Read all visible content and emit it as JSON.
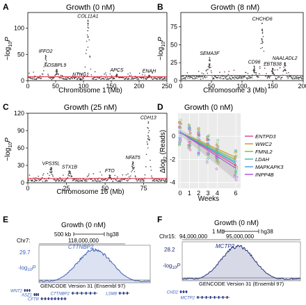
{
  "panels": {
    "A": {
      "letter": "A",
      "title": "Growth (0 nM)",
      "xlabel": "Chromosome 1 (Mb)",
      "ylabel_main": "−log",
      "ylabel_sub": "10",
      "ylabel_p": "P"
    },
    "B": {
      "letter": "B",
      "title": "Growth (8 nM)",
      "xlabel": "Chromosome 3 (Mb)",
      "ylabel_main": "−log",
      "ylabel_sub": "10",
      "ylabel_p": "P"
    },
    "C": {
      "letter": "C",
      "title": "Growth (25 nM)",
      "xlabel": "Chromosome 16 (Mb)",
      "ylabel_main": "−log",
      "ylabel_sub": "10",
      "ylabel_p": "P"
    },
    "D": {
      "letter": "D",
      "title": "Growth (0 nM)",
      "xlabel": "Weeks",
      "ylabel_main": "Δlog",
      "ylabel_sub": "2",
      "ylabel_tail": " (Reads)"
    },
    "E": {
      "letter": "E",
      "title": "Growth (0 nM)",
      "chrom": "Chr7:",
      "scale": "500 kb",
      "build": "hg38",
      "position": "118,000,000",
      "gene": "CTTNBP2",
      "ymax": "29.7",
      "ylabel_main": "-log",
      "ylabel_sub": "10",
      "ylabel_p": "P",
      "annotation": "GENCODE Version 31 (Ensembl 97)",
      "genes_track": [
        "WNT2",
        "ASZ1",
        "CFTR",
        "CTTNBP2",
        "LSM8"
      ]
    },
    "F": {
      "letter": "F",
      "title": "Growth (0 nM)",
      "chrom": "Chr15:",
      "scale": "1 Mb",
      "build": "hg38",
      "position1": "94,000,000",
      "position2": "95,000,000",
      "gene": "MCTP2",
      "ymax": "28.2",
      "ylabel_main": "-log",
      "ylabel_sub": "10",
      "ylabel_p": "P",
      "annotation": "GENCODE Version 31 (Ensembl 97)",
      "genes_track": [
        "CHD2",
        "MCTP2"
      ]
    }
  },
  "colors": {
    "threshold": "#e8253a",
    "manhattan": "#444444",
    "track_blue": "#3c5fb8",
    "track_dark": "#1f2f7a",
    "gene_label": "#3c5fb8"
  },
  "chart_data": [
    {
      "type": "scatter",
      "panel": "A",
      "xlim": [
        0,
        250
      ],
      "ylim": [
        0,
        130
      ],
      "xticks": [
        0,
        50,
        100,
        150,
        200,
        250
      ],
      "yticks": [
        0,
        50,
        100
      ],
      "threshold": 7.3,
      "peaks": [
        {
          "x": 32,
          "y": 48,
          "label": "IFFO2"
        },
        {
          "x": 52,
          "y": 21,
          "label": "OSBPL9"
        },
        {
          "x": 95,
          "y": 3,
          "label": "NTNG1"
        },
        {
          "x": 108,
          "y": 115,
          "label": "COL11A1"
        },
        {
          "x": 160,
          "y": 12,
          "label": "APCS"
        },
        {
          "x": 218,
          "y": 10,
          "label": "ENAH"
        }
      ]
    },
    {
      "type": "scatter",
      "panel": "B",
      "xlim": [
        0,
        200
      ],
      "ylim": [
        0,
        95
      ],
      "xticks": [
        0,
        50,
        100,
        150,
        200
      ],
      "yticks": [
        0,
        25,
        50,
        75
      ],
      "threshold": 7.3,
      "peaks": [
        {
          "x": 47,
          "y": 32,
          "label": "SEMA3F"
        },
        {
          "x": 120,
          "y": 20,
          "label": "CD96"
        },
        {
          "x": 133,
          "y": 80,
          "label": "CHCHD6"
        },
        {
          "x": 150,
          "y": 17,
          "label": "ZBTB38"
        },
        {
          "x": 170,
          "y": 25,
          "label": "NAALADL2"
        }
      ]
    },
    {
      "type": "scatter",
      "panel": "C",
      "xlim": [
        0,
        90
      ],
      "ylim": [
        0,
        120
      ],
      "xticks": [
        0,
        25,
        50,
        75
      ],
      "yticks": [
        0,
        30,
        60,
        90,
        120
      ],
      "threshold": 7.3,
      "peaks": [
        {
          "x": 15,
          "y": 26,
          "label": "VPS35L"
        },
        {
          "x": 27,
          "y": 20,
          "label": "STX1B"
        },
        {
          "x": 53,
          "y": 13,
          "label": "FTO"
        },
        {
          "x": 68,
          "y": 36,
          "label": "NFAT5"
        },
        {
          "x": 78,
          "y": 105,
          "label": "CDH13"
        }
      ]
    },
    {
      "type": "line",
      "panel": "D",
      "x": [
        0,
        1,
        2,
        3,
        4,
        6
      ],
      "xticks": [
        0,
        1,
        2,
        3,
        4,
        6
      ],
      "ylim": [
        -4.5,
        2
      ],
      "yticks": [
        -4,
        -2,
        0
      ],
      "series": [
        {
          "name": "ENTPD3",
          "color": "#e8458f",
          "slope": -0.48
        },
        {
          "name": "WWC2",
          "color": "#c9a227",
          "slope": -0.36
        },
        {
          "name": "FMNL2",
          "color": "#7fbf3f",
          "slope": -0.4
        },
        {
          "name": "LDAH",
          "color": "#3cc1b0",
          "slope": -0.43
        },
        {
          "name": "MAPKAPK3",
          "color": "#4aa3e0",
          "slope": -0.45
        },
        {
          "name": "INPP4B",
          "color": "#b055d9",
          "slope": -0.52
        }
      ]
    },
    {
      "type": "area",
      "panel": "E",
      "ylim": [
        0,
        29.7
      ],
      "peak_x": 0.5,
      "peak_y": 29.7
    },
    {
      "type": "area",
      "panel": "F",
      "ylim": [
        0,
        28.2
      ],
      "peak_x": 0.47,
      "peak_y": 28.2
    }
  ]
}
